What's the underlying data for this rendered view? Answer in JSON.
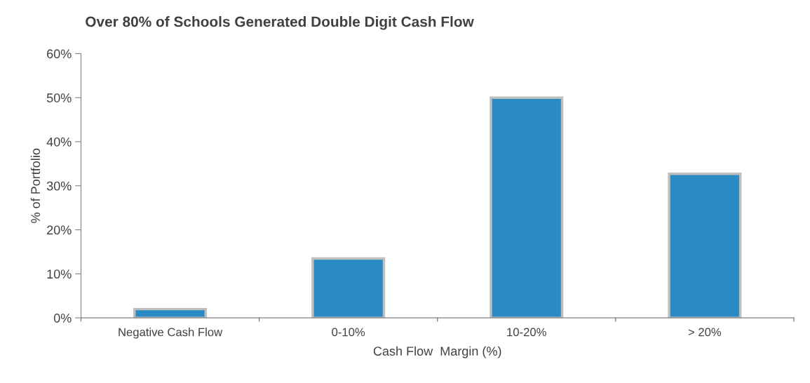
{
  "chart_data": {
    "type": "bar",
    "title": "Over 80% of Schools Generated Double Digit Cash Flow",
    "xlabel": "Cash Flow  Margin (%)",
    "ylabel": "% of Portfolio",
    "categories": [
      "Negative Cash Flow",
      "0-10%",
      "10-20%",
      "> 20%"
    ],
    "values": [
      2,
      13.5,
      50,
      32.7
    ],
    "color": "#2a8bc4",
    "ylim": [
      0,
      60
    ],
    "yticks": [
      {
        "value": 0,
        "label": "0%"
      },
      {
        "value": 10,
        "label": "10%"
      },
      {
        "value": 20,
        "label": "20%"
      },
      {
        "value": 30,
        "label": "30%"
      },
      {
        "value": 40,
        "label": "40%"
      },
      {
        "value": 50,
        "label": "50%"
      },
      {
        "value": 60,
        "label": "60%"
      }
    ],
    "grid": false,
    "legend": false
  }
}
